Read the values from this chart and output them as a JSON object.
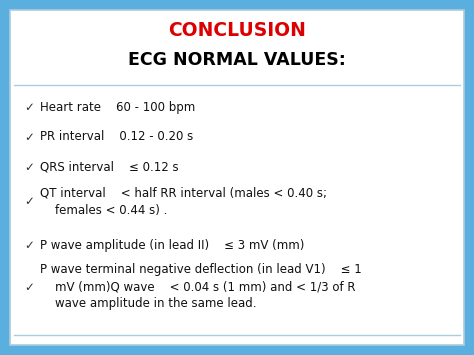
{
  "title1": "CONCLUSION",
  "title2": "ECG NORMAL VALUES:",
  "title1_color": "#dd0000",
  "title2_color": "#000000",
  "background_color": "#5aafdf",
  "inner_bg_color": "#ffffff",
  "border_color": "#5aafdf",
  "inner_border_color": "#aaccdd",
  "checkmark": "✓",
  "bullet_color": "#333333",
  "text_color": "#111111",
  "items": [
    "Heart rate    60 - 100 bpm",
    "PR interval    0.12 - 0.20 s",
    "QRS interval    ≤ 0.12 s",
    "QT interval    < half RR interval (males < 0.40 s;\n    females < 0.44 s) .",
    "P wave amplitude (in lead II)    ≤ 3 mV (mm)",
    "P wave terminal negative deflection (in lead V1)    ≤ 1\n    mV (mm)Q wave    < 0.04 s (1 mm) and < 1/3 of R\n    wave amplitude in the same lead."
  ],
  "item_fontsize": 8.5,
  "title1_fontsize": 13.5,
  "title2_fontsize": 12.5,
  "figsize": [
    4.74,
    3.55
  ],
  "dpi": 100
}
